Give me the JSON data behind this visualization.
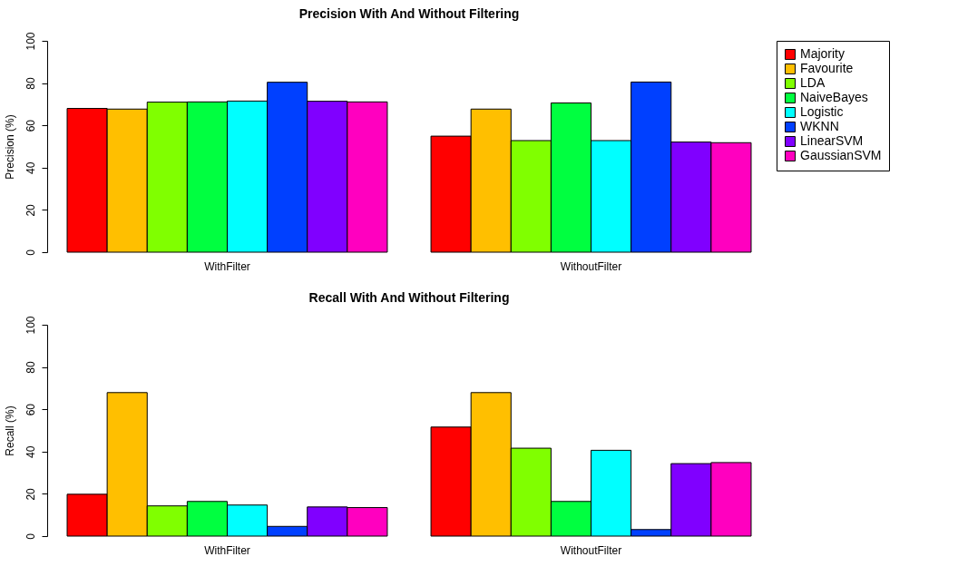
{
  "chart_data": [
    {
      "type": "bar",
      "title": "Precision With And Without Filtering",
      "ylabel": "Precision (%)",
      "categories": [
        "WithFilter",
        "WithoutFilter"
      ],
      "ylim": [
        0,
        100
      ],
      "yticks": [
        0,
        20,
        40,
        60,
        80,
        100
      ],
      "legend": "right",
      "series": [
        {
          "name": "Majority",
          "color": "#ff0000",
          "values": [
            68.0,
            54.9
          ]
        },
        {
          "name": "Favourite",
          "color": "#ffbf00",
          "values": [
            67.7,
            67.7
          ]
        },
        {
          "name": "LDA",
          "color": "#80ff00",
          "values": [
            71.0,
            52.8
          ]
        },
        {
          "name": "NaiveBayes",
          "color": "#00ff40",
          "values": [
            71.1,
            70.6
          ]
        },
        {
          "name": "Logistic",
          "color": "#00ffff",
          "values": [
            71.5,
            52.8
          ]
        },
        {
          "name": "WKNN",
          "color": "#0040ff",
          "values": [
            80.4,
            80.5
          ]
        },
        {
          "name": "LinearSVM",
          "color": "#8000ff",
          "values": [
            71.4,
            52.1
          ]
        },
        {
          "name": "GaussianSVM",
          "color": "#ff00bf",
          "values": [
            71.1,
            51.8
          ]
        }
      ]
    },
    {
      "type": "bar",
      "title": "Recall With And Without Filtering",
      "ylabel": "Recall (%)",
      "categories": [
        "WithFilter",
        "WithoutFilter"
      ],
      "ylim": [
        0,
        100
      ],
      "yticks": [
        0,
        20,
        40,
        60,
        80,
        100
      ],
      "legend": "right",
      "series": [
        {
          "name": "Majority",
          "color": "#ff0000",
          "values": [
            19.8,
            51.6
          ]
        },
        {
          "name": "Favourite",
          "color": "#ffbf00",
          "values": [
            67.9,
            67.9
          ]
        },
        {
          "name": "LDA",
          "color": "#80ff00",
          "values": [
            14.3,
            41.6
          ]
        },
        {
          "name": "NaiveBayes",
          "color": "#00ff40",
          "values": [
            16.4,
            16.4
          ]
        },
        {
          "name": "Logistic",
          "color": "#00ffff",
          "values": [
            14.7,
            40.6
          ]
        },
        {
          "name": "WKNN",
          "color": "#0040ff",
          "values": [
            4.6,
            3.1
          ]
        },
        {
          "name": "LinearSVM",
          "color": "#8000ff",
          "values": [
            13.8,
            34.3
          ]
        },
        {
          "name": "GaussianSVM",
          "color": "#ff00bf",
          "values": [
            13.5,
            34.8
          ]
        }
      ]
    }
  ]
}
